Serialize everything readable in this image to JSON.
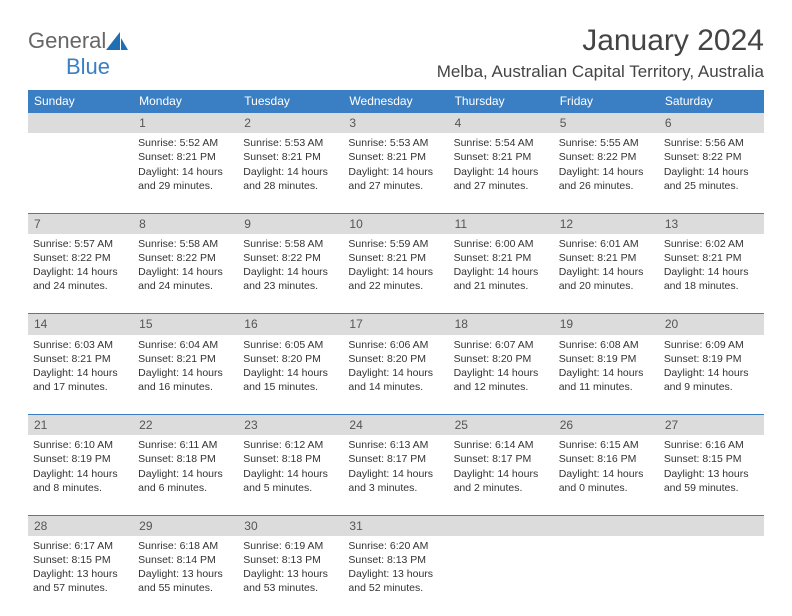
{
  "logo": {
    "text1": "General",
    "text2": "Blue"
  },
  "title": "January 2024",
  "location": "Melba, Australian Capital Territory, Australia",
  "colors": {
    "header_bg": "#3a7fc4",
    "header_text": "#ffffff",
    "daynum_bg": "#dcdcdc",
    "daynum_text": "#555555",
    "body_text": "#333333",
    "page_bg": "#ffffff",
    "accent_border": "#3a7fc4"
  },
  "typography": {
    "title_fontsize": 30,
    "location_fontsize": 17,
    "header_fontsize": 12,
    "daynum_fontsize": 12,
    "cell_fontsize": 10.5
  },
  "weekdays": [
    "Sunday",
    "Monday",
    "Tuesday",
    "Wednesday",
    "Thursday",
    "Friday",
    "Saturday"
  ],
  "weeks": [
    {
      "nums": [
        "",
        "1",
        "2",
        "3",
        "4",
        "5",
        "6"
      ],
      "cells": [
        {
          "empty": true
        },
        {
          "sunrise": "Sunrise: 5:52 AM",
          "sunset": "Sunset: 8:21 PM",
          "day1": "Daylight: 14 hours",
          "day2": "and 29 minutes."
        },
        {
          "sunrise": "Sunrise: 5:53 AM",
          "sunset": "Sunset: 8:21 PM",
          "day1": "Daylight: 14 hours",
          "day2": "and 28 minutes."
        },
        {
          "sunrise": "Sunrise: 5:53 AM",
          "sunset": "Sunset: 8:21 PM",
          "day1": "Daylight: 14 hours",
          "day2": "and 27 minutes."
        },
        {
          "sunrise": "Sunrise: 5:54 AM",
          "sunset": "Sunset: 8:21 PM",
          "day1": "Daylight: 14 hours",
          "day2": "and 27 minutes."
        },
        {
          "sunrise": "Sunrise: 5:55 AM",
          "sunset": "Sunset: 8:22 PM",
          "day1": "Daylight: 14 hours",
          "day2": "and 26 minutes."
        },
        {
          "sunrise": "Sunrise: 5:56 AM",
          "sunset": "Sunset: 8:22 PM",
          "day1": "Daylight: 14 hours",
          "day2": "and 25 minutes."
        }
      ]
    },
    {
      "nums": [
        "7",
        "8",
        "9",
        "10",
        "11",
        "12",
        "13"
      ],
      "cells": [
        {
          "sunrise": "Sunrise: 5:57 AM",
          "sunset": "Sunset: 8:22 PM",
          "day1": "Daylight: 14 hours",
          "day2": "and 24 minutes."
        },
        {
          "sunrise": "Sunrise: 5:58 AM",
          "sunset": "Sunset: 8:22 PM",
          "day1": "Daylight: 14 hours",
          "day2": "and 24 minutes."
        },
        {
          "sunrise": "Sunrise: 5:58 AM",
          "sunset": "Sunset: 8:22 PM",
          "day1": "Daylight: 14 hours",
          "day2": "and 23 minutes."
        },
        {
          "sunrise": "Sunrise: 5:59 AM",
          "sunset": "Sunset: 8:21 PM",
          "day1": "Daylight: 14 hours",
          "day2": "and 22 minutes."
        },
        {
          "sunrise": "Sunrise: 6:00 AM",
          "sunset": "Sunset: 8:21 PM",
          "day1": "Daylight: 14 hours",
          "day2": "and 21 minutes."
        },
        {
          "sunrise": "Sunrise: 6:01 AM",
          "sunset": "Sunset: 8:21 PM",
          "day1": "Daylight: 14 hours",
          "day2": "and 20 minutes."
        },
        {
          "sunrise": "Sunrise: 6:02 AM",
          "sunset": "Sunset: 8:21 PM",
          "day1": "Daylight: 14 hours",
          "day2": "and 18 minutes."
        }
      ]
    },
    {
      "nums": [
        "14",
        "15",
        "16",
        "17",
        "18",
        "19",
        "20"
      ],
      "cells": [
        {
          "sunrise": "Sunrise: 6:03 AM",
          "sunset": "Sunset: 8:21 PM",
          "day1": "Daylight: 14 hours",
          "day2": "and 17 minutes."
        },
        {
          "sunrise": "Sunrise: 6:04 AM",
          "sunset": "Sunset: 8:21 PM",
          "day1": "Daylight: 14 hours",
          "day2": "and 16 minutes."
        },
        {
          "sunrise": "Sunrise: 6:05 AM",
          "sunset": "Sunset: 8:20 PM",
          "day1": "Daylight: 14 hours",
          "day2": "and 15 minutes."
        },
        {
          "sunrise": "Sunrise: 6:06 AM",
          "sunset": "Sunset: 8:20 PM",
          "day1": "Daylight: 14 hours",
          "day2": "and 14 minutes."
        },
        {
          "sunrise": "Sunrise: 6:07 AM",
          "sunset": "Sunset: 8:20 PM",
          "day1": "Daylight: 14 hours",
          "day2": "and 12 minutes."
        },
        {
          "sunrise": "Sunrise: 6:08 AM",
          "sunset": "Sunset: 8:19 PM",
          "day1": "Daylight: 14 hours",
          "day2": "and 11 minutes."
        },
        {
          "sunrise": "Sunrise: 6:09 AM",
          "sunset": "Sunset: 8:19 PM",
          "day1": "Daylight: 14 hours",
          "day2": "and 9 minutes."
        }
      ]
    },
    {
      "nums": [
        "21",
        "22",
        "23",
        "24",
        "25",
        "26",
        "27"
      ],
      "cells": [
        {
          "sunrise": "Sunrise: 6:10 AM",
          "sunset": "Sunset: 8:19 PM",
          "day1": "Daylight: 14 hours",
          "day2": "and 8 minutes."
        },
        {
          "sunrise": "Sunrise: 6:11 AM",
          "sunset": "Sunset: 8:18 PM",
          "day1": "Daylight: 14 hours",
          "day2": "and 6 minutes."
        },
        {
          "sunrise": "Sunrise: 6:12 AM",
          "sunset": "Sunset: 8:18 PM",
          "day1": "Daylight: 14 hours",
          "day2": "and 5 minutes."
        },
        {
          "sunrise": "Sunrise: 6:13 AM",
          "sunset": "Sunset: 8:17 PM",
          "day1": "Daylight: 14 hours",
          "day2": "and 3 minutes."
        },
        {
          "sunrise": "Sunrise: 6:14 AM",
          "sunset": "Sunset: 8:17 PM",
          "day1": "Daylight: 14 hours",
          "day2": "and 2 minutes."
        },
        {
          "sunrise": "Sunrise: 6:15 AM",
          "sunset": "Sunset: 8:16 PM",
          "day1": "Daylight: 14 hours",
          "day2": "and 0 minutes."
        },
        {
          "sunrise": "Sunrise: 6:16 AM",
          "sunset": "Sunset: 8:15 PM",
          "day1": "Daylight: 13 hours",
          "day2": "and 59 minutes."
        }
      ]
    },
    {
      "nums": [
        "28",
        "29",
        "30",
        "31",
        "",
        "",
        ""
      ],
      "cells": [
        {
          "sunrise": "Sunrise: 6:17 AM",
          "sunset": "Sunset: 8:15 PM",
          "day1": "Daylight: 13 hours",
          "day2": "and 57 minutes."
        },
        {
          "sunrise": "Sunrise: 6:18 AM",
          "sunset": "Sunset: 8:14 PM",
          "day1": "Daylight: 13 hours",
          "day2": "and 55 minutes."
        },
        {
          "sunrise": "Sunrise: 6:19 AM",
          "sunset": "Sunset: 8:13 PM",
          "day1": "Daylight: 13 hours",
          "day2": "and 53 minutes."
        },
        {
          "sunrise": "Sunrise: 6:20 AM",
          "sunset": "Sunset: 8:13 PM",
          "day1": "Daylight: 13 hours",
          "day2": "and 52 minutes."
        },
        {
          "empty": true
        },
        {
          "empty": true
        },
        {
          "empty": true
        }
      ]
    }
  ]
}
